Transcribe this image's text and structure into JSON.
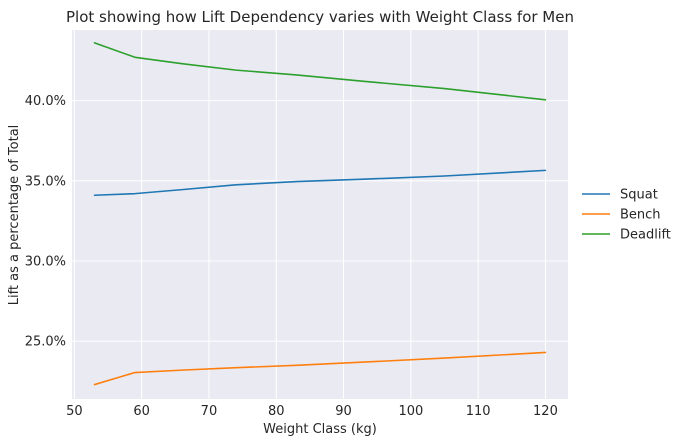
{
  "chart_data": {
    "type": "line",
    "title": "Plot showing how Lift Dependency varies with Weight Class for Men",
    "xlabel": "Weight Class (kg)",
    "ylabel": "Lift as a percentage of Total",
    "xlim": [
      49.65,
      123.35
    ],
    "ylim": [
      21.4,
      44.4
    ],
    "xticks": [
      50,
      60,
      70,
      80,
      90,
      100,
      110,
      120
    ],
    "xtick_labels": [
      "50",
      "60",
      "70",
      "80",
      "90",
      "100",
      "110",
      "120"
    ],
    "yticks": [
      25,
      30,
      35,
      40
    ],
    "ytick_labels": [
      "25.0%",
      "30.0%",
      "35.0%",
      "40.0%"
    ],
    "grid": true,
    "legend_position": "right-outside",
    "x": [
      53,
      59,
      66,
      74,
      83,
      93,
      105,
      120
    ],
    "series": [
      {
        "name": "Squat",
        "color": "#1f77b4",
        "values": [
          34.1,
          34.2,
          34.45,
          34.75,
          34.95,
          35.1,
          35.3,
          35.65
        ]
      },
      {
        "name": "Bench",
        "color": "#ff7f0e",
        "values": [
          22.3,
          23.05,
          23.2,
          23.35,
          23.5,
          23.7,
          23.95,
          24.3
        ]
      },
      {
        "name": "Deadlift",
        "color": "#2ca02c",
        "values": [
          43.6,
          42.7,
          42.3,
          41.9,
          41.6,
          41.2,
          40.75,
          40.05
        ]
      }
    ]
  }
}
